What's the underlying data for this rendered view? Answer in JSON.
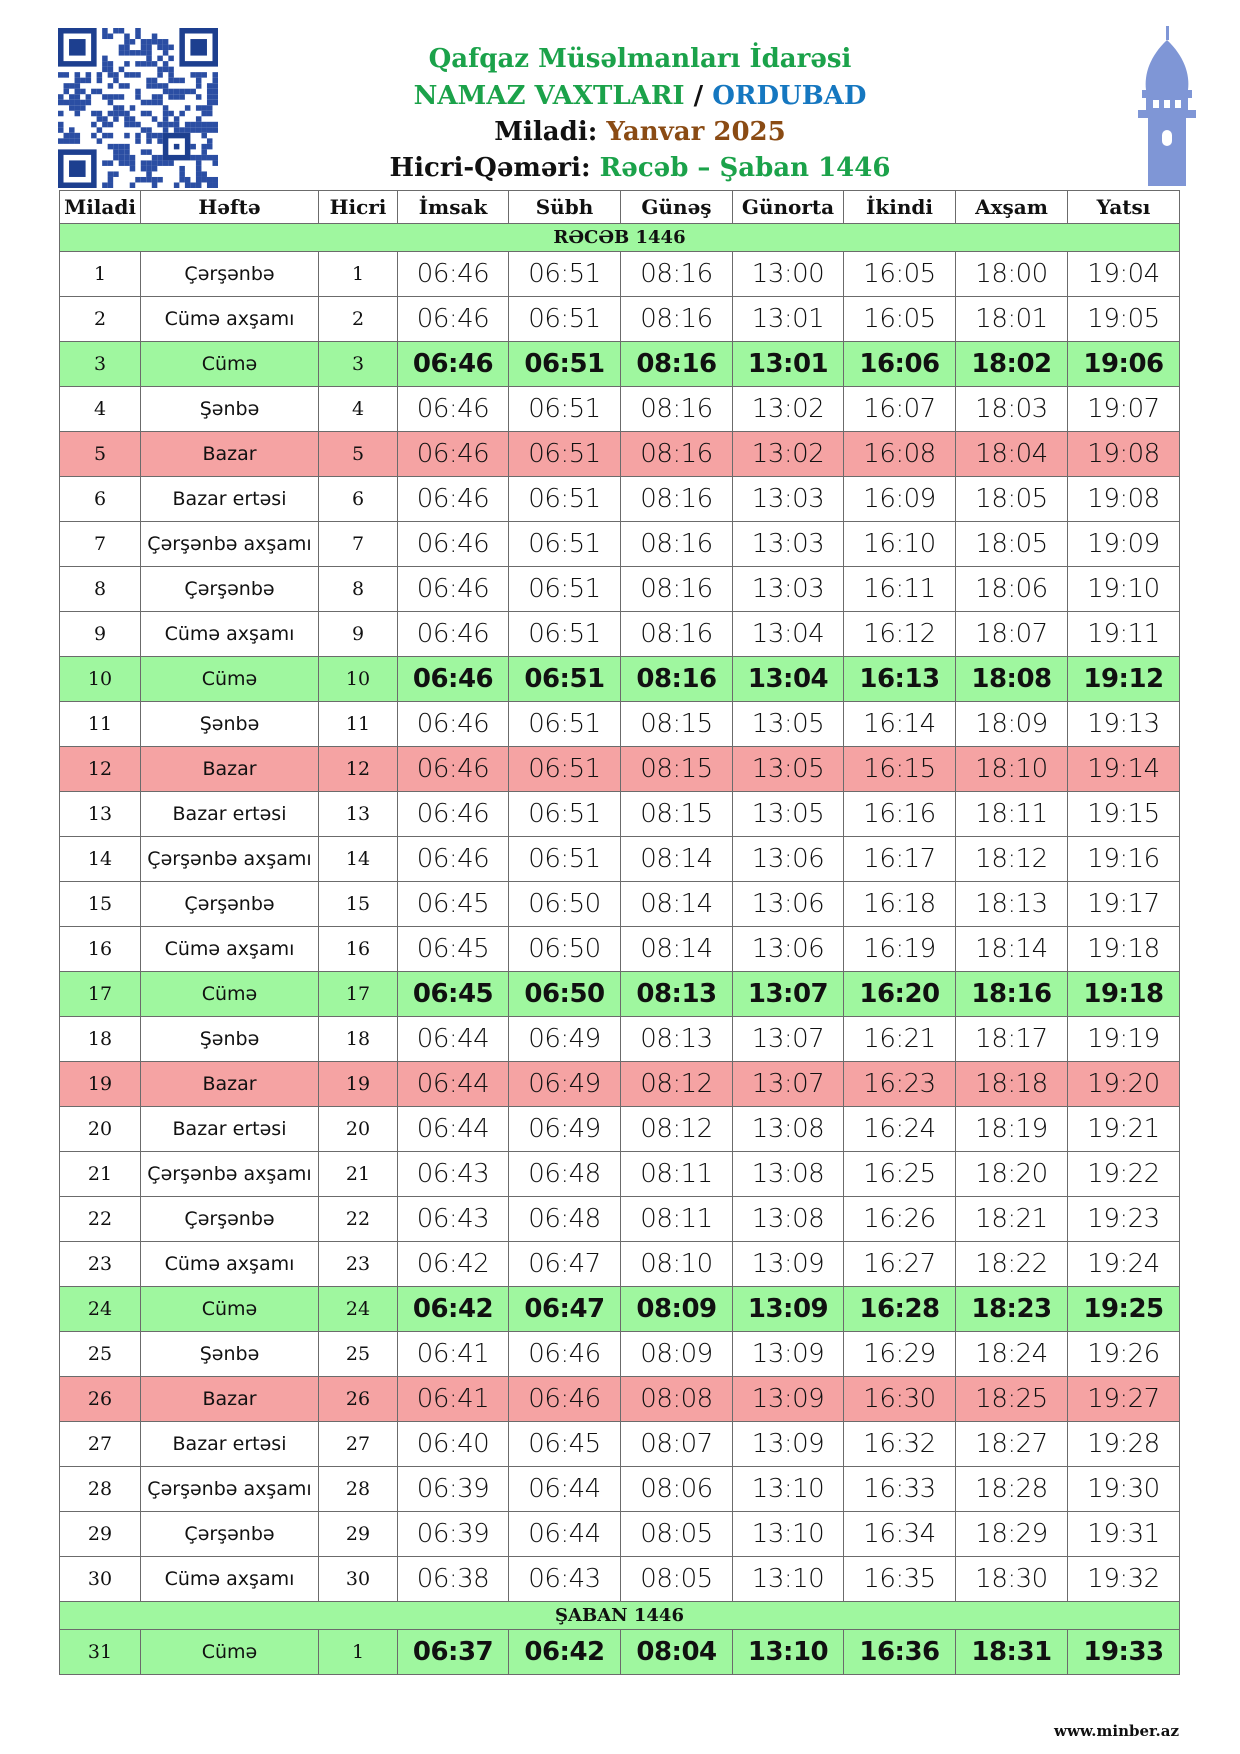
{
  "header": {
    "organization": "Qafqaz Müsəlmanları İdarəsi",
    "heading": "NAMAZ VAXTLARI",
    "separator": "/",
    "city": "ORDUBAD",
    "gregorian_label": "Miladi:",
    "gregorian_month": "Yanvar 2025",
    "hijri_label": "Hicri-Qəməri:",
    "hijri_months": "Rəcəb – Şaban 1446"
  },
  "table": {
    "columns": [
      "Miladi",
      "Həftə",
      "Hicri",
      "İmsak",
      "Sübh",
      "Günəş",
      "Günorta",
      "İkindi",
      "Axşam",
      "Yatsı"
    ],
    "sections": [
      {
        "title": "RƏCƏB 1446",
        "rows": [
          {
            "cells": [
              "1",
              "Çərşənbə",
              "1",
              "06:46",
              "06:51",
              "08:16",
              "13:00",
              "16:05",
              "18:00",
              "19:04"
            ]
          },
          {
            "cells": [
              "2",
              "Cümə axşamı",
              "2",
              "06:46",
              "06:51",
              "08:16",
              "13:01",
              "16:05",
              "18:01",
              "19:05"
            ]
          },
          {
            "cells": [
              "3",
              "Cümə",
              "3",
              "06:46",
              "06:51",
              "08:16",
              "13:01",
              "16:06",
              "18:02",
              "19:06"
            ],
            "fill": "#9ff79f",
            "bold": true
          },
          {
            "cells": [
              "4",
              "Şənbə",
              "4",
              "06:46",
              "06:51",
              "08:16",
              "13:02",
              "16:07",
              "18:03",
              "19:07"
            ]
          },
          {
            "cells": [
              "5",
              "Bazar",
              "5",
              "06:46",
              "06:51",
              "08:16",
              "13:02",
              "16:08",
              "18:04",
              "19:08"
            ],
            "fill": "#f5a3a3"
          },
          {
            "cells": [
              "6",
              "Bazar ertəsi",
              "6",
              "06:46",
              "06:51",
              "08:16",
              "13:03",
              "16:09",
              "18:05",
              "19:08"
            ]
          },
          {
            "cells": [
              "7",
              "Çərşənbə axşamı",
              "7",
              "06:46",
              "06:51",
              "08:16",
              "13:03",
              "16:10",
              "18:05",
              "19:09"
            ]
          },
          {
            "cells": [
              "8",
              "Çərşənbə",
              "8",
              "06:46",
              "06:51",
              "08:16",
              "13:03",
              "16:11",
              "18:06",
              "19:10"
            ]
          },
          {
            "cells": [
              "9",
              "Cümə axşamı",
              "9",
              "06:46",
              "06:51",
              "08:16",
              "13:04",
              "16:12",
              "18:07",
              "19:11"
            ]
          },
          {
            "cells": [
              "10",
              "Cümə",
              "10",
              "06:46",
              "06:51",
              "08:16",
              "13:04",
              "16:13",
              "18:08",
              "19:12"
            ],
            "fill": "#9ff79f",
            "bold": true
          },
          {
            "cells": [
              "11",
              "Şənbə",
              "11",
              "06:46",
              "06:51",
              "08:15",
              "13:05",
              "16:14",
              "18:09",
              "19:13"
            ]
          },
          {
            "cells": [
              "12",
              "Bazar",
              "12",
              "06:46",
              "06:51",
              "08:15",
              "13:05",
              "16:15",
              "18:10",
              "19:14"
            ],
            "fill": "#f5a3a3"
          },
          {
            "cells": [
              "13",
              "Bazar ertəsi",
              "13",
              "06:46",
              "06:51",
              "08:15",
              "13:05",
              "16:16",
              "18:11",
              "19:15"
            ]
          },
          {
            "cells": [
              "14",
              "Çərşənbə axşamı",
              "14",
              "06:46",
              "06:51",
              "08:14",
              "13:06",
              "16:17",
              "18:12",
              "19:16"
            ]
          },
          {
            "cells": [
              "15",
              "Çərşənbə",
              "15",
              "06:45",
              "06:50",
              "08:14",
              "13:06",
              "16:18",
              "18:13",
              "19:17"
            ]
          },
          {
            "cells": [
              "16",
              "Cümə axşamı",
              "16",
              "06:45",
              "06:50",
              "08:14",
              "13:06",
              "16:19",
              "18:14",
              "19:18"
            ]
          },
          {
            "cells": [
              "17",
              "Cümə",
              "17",
              "06:45",
              "06:50",
              "08:13",
              "13:07",
              "16:20",
              "18:16",
              "19:18"
            ],
            "fill": "#9ff79f",
            "bold": true
          },
          {
            "cells": [
              "18",
              "Şənbə",
              "18",
              "06:44",
              "06:49",
              "08:13",
              "13:07",
              "16:21",
              "18:17",
              "19:19"
            ]
          },
          {
            "cells": [
              "19",
              "Bazar",
              "19",
              "06:44",
              "06:49",
              "08:12",
              "13:07",
              "16:23",
              "18:18",
              "19:20"
            ],
            "fill": "#f5a3a3"
          },
          {
            "cells": [
              "20",
              "Bazar ertəsi",
              "20",
              "06:44",
              "06:49",
              "08:12",
              "13:08",
              "16:24",
              "18:19",
              "19:21"
            ]
          },
          {
            "cells": [
              "21",
              "Çərşənbə axşamı",
              "21",
              "06:43",
              "06:48",
              "08:11",
              "13:08",
              "16:25",
              "18:20",
              "19:22"
            ]
          },
          {
            "cells": [
              "22",
              "Çərşənbə",
              "22",
              "06:43",
              "06:48",
              "08:11",
              "13:08",
              "16:26",
              "18:21",
              "19:23"
            ]
          },
          {
            "cells": [
              "23",
              "Cümə axşamı",
              "23",
              "06:42",
              "06:47",
              "08:10",
              "13:09",
              "16:27",
              "18:22",
              "19:24"
            ]
          },
          {
            "cells": [
              "24",
              "Cümə",
              "24",
              "06:42",
              "06:47",
              "08:09",
              "13:09",
              "16:28",
              "18:23",
              "19:25"
            ],
            "fill": "#9ff79f",
            "bold": true
          },
          {
            "cells": [
              "25",
              "Şənbə",
              "25",
              "06:41",
              "06:46",
              "08:09",
              "13:09",
              "16:29",
              "18:24",
              "19:26"
            ]
          },
          {
            "cells": [
              "26",
              "Bazar",
              "26",
              "06:41",
              "06:46",
              "08:08",
              "13:09",
              "16:30",
              "18:25",
              "19:27"
            ],
            "fill": "#f5a3a3"
          },
          {
            "cells": [
              "27",
              "Bazar ertəsi",
              "27",
              "06:40",
              "06:45",
              "08:07",
              "13:09",
              "16:32",
              "18:27",
              "19:28"
            ]
          },
          {
            "cells": [
              "28",
              "Çərşənbə axşamı",
              "28",
              "06:39",
              "06:44",
              "08:06",
              "13:10",
              "16:33",
              "18:28",
              "19:30"
            ]
          },
          {
            "cells": [
              "29",
              "Çərşənbə",
              "29",
              "06:39",
              "06:44",
              "08:05",
              "13:10",
              "16:34",
              "18:29",
              "19:31"
            ]
          },
          {
            "cells": [
              "30",
              "Cümə axşamı",
              "30",
              "06:38",
              "06:43",
              "08:05",
              "13:10",
              "16:35",
              "18:30",
              "19:32"
            ]
          }
        ]
      },
      {
        "title": "ŞABAN 1446",
        "rows": [
          {
            "cells": [
              "31",
              "Cümə",
              "1",
              "06:37",
              "06:42",
              "08:04",
              "13:10",
              "16:36",
              "18:31",
              "19:33"
            ],
            "fill": "#9ff79f",
            "bold": true
          }
        ]
      }
    ]
  },
  "footer": "www.minber.az"
}
